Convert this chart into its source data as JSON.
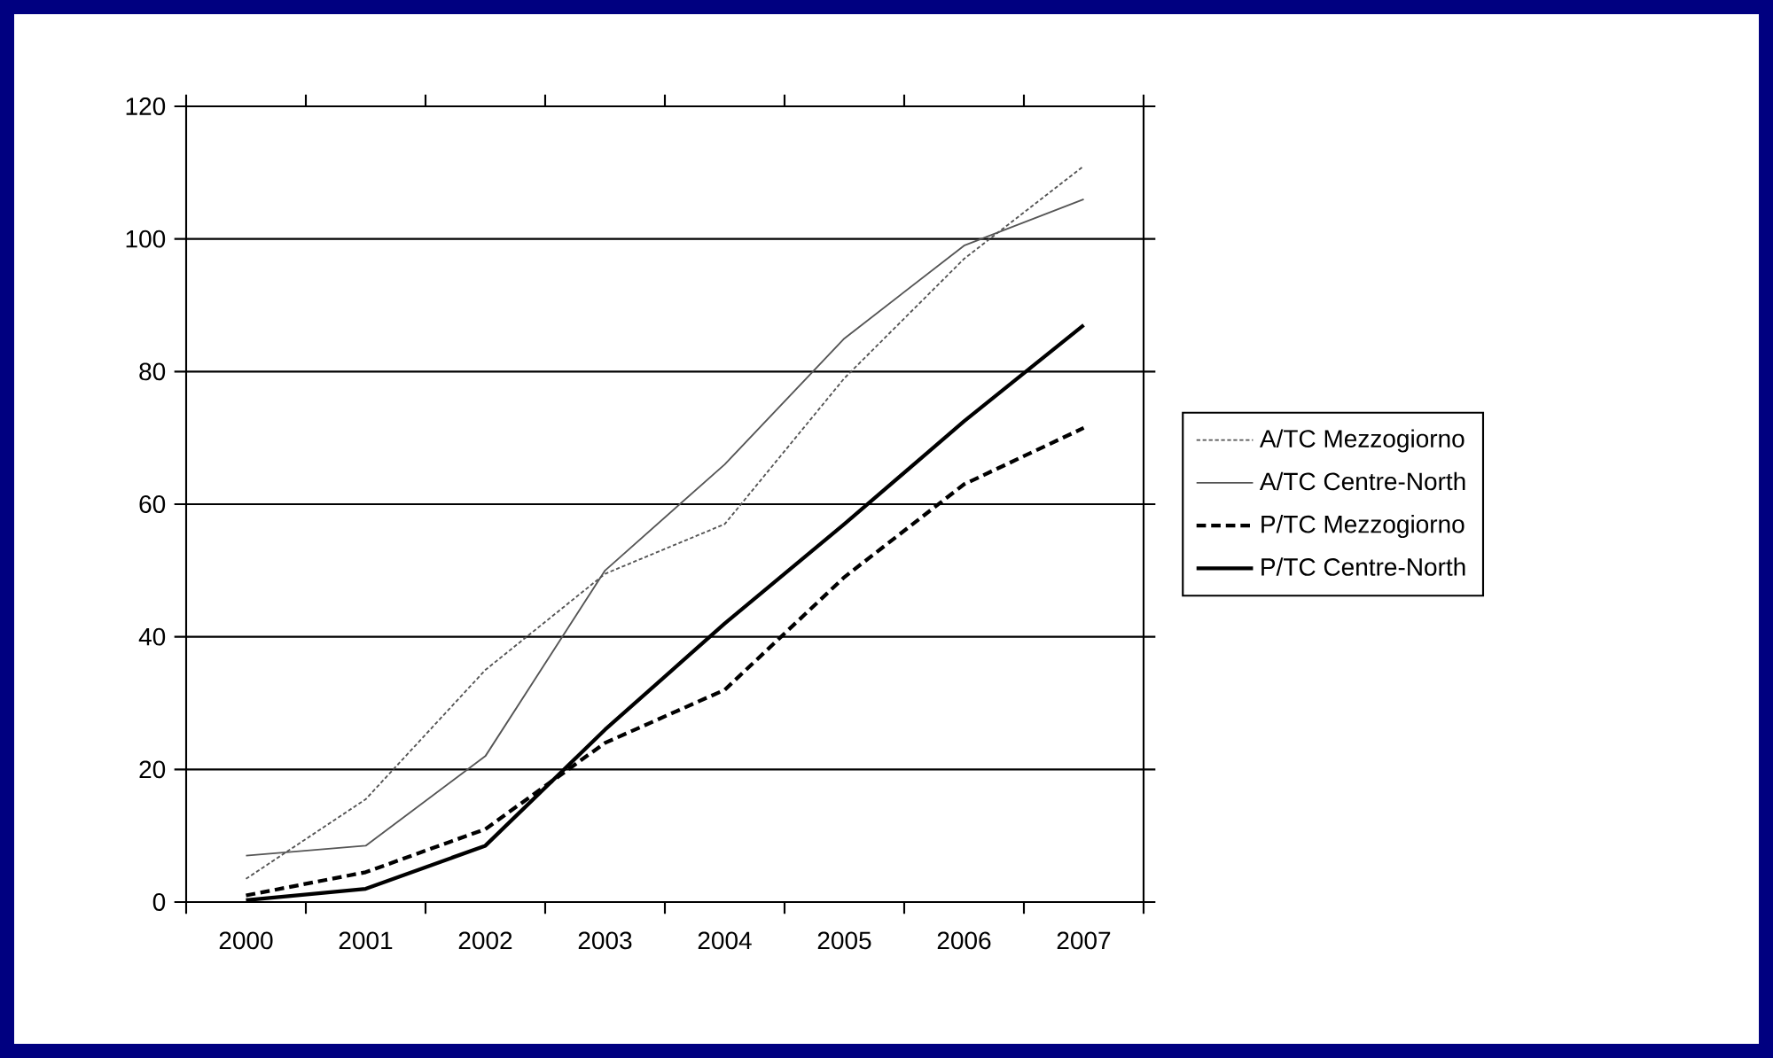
{
  "chart_data": {
    "type": "line",
    "categories": [
      "2000",
      "2001",
      "2002",
      "2003",
      "2004",
      "2005",
      "2006",
      "2007"
    ],
    "ylim": [
      0,
      120
    ],
    "yticks": [
      0,
      20,
      40,
      60,
      80,
      100,
      120
    ],
    "grid": "y",
    "legend": "right",
    "series": [
      {
        "name": "A/TC Mezzogiorno",
        "color": "#555555",
        "line_style": "dotted",
        "values": [
          3.5,
          15.5,
          35,
          49.5,
          57,
          79,
          97,
          111
        ]
      },
      {
        "name": "A/TC Centre-North",
        "color": "#555555",
        "line_style": "solid",
        "values": [
          7,
          8.5,
          22,
          50,
          66,
          85,
          99,
          106
        ]
      },
      {
        "name": "P/TC Mezzogiorno",
        "color": "#000000",
        "line_style": "dashed",
        "values": [
          1,
          4.5,
          11,
          24,
          32,
          49,
          63,
          71.5
        ]
      },
      {
        "name": "P/TC Centre-North",
        "color": "#000000",
        "line_style": "solid",
        "values": [
          0.3,
          2,
          8.5,
          26,
          42,
          57,
          72.5,
          87
        ]
      }
    ]
  }
}
